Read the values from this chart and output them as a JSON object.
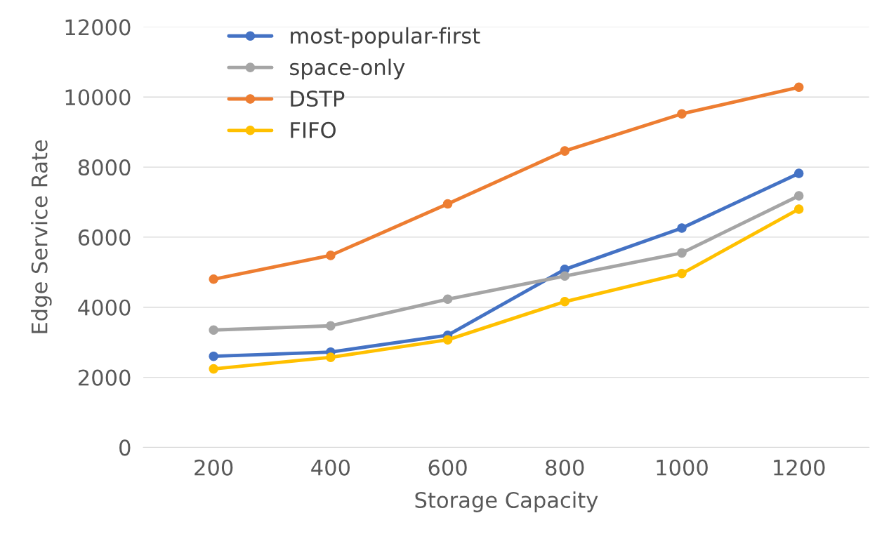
{
  "chart_data": {
    "type": "line",
    "xlabel": "Storage Capacity",
    "ylabel": "Edge Service Rate",
    "categories": [
      "200",
      "400",
      "600",
      "800",
      "1000",
      "1200"
    ],
    "series": [
      {
        "name": "most-popular-first",
        "color": "#4472c4",
        "values": [
          2600,
          2720,
          3200,
          5080,
          6260,
          7820
        ]
      },
      {
        "name": "space-only",
        "color": "#a5a5a5",
        "values": [
          3350,
          3470,
          4230,
          4890,
          5550,
          7180
        ]
      },
      {
        "name": "DSTP",
        "color": "#ed7d31",
        "values": [
          4800,
          5480,
          6950,
          8460,
          9520,
          10280
        ]
      },
      {
        "name": "FIFO",
        "color": "#ffc000",
        "values": [
          2240,
          2570,
          3070,
          4160,
          4960,
          6800
        ]
      }
    ],
    "ylim": [
      0,
      12000
    ],
    "yticks": [
      0,
      2000,
      4000,
      6000,
      8000,
      10000,
      12000
    ],
    "grid": "y",
    "legend": "top left",
    "marker": "circle",
    "line_style": "solid"
  }
}
